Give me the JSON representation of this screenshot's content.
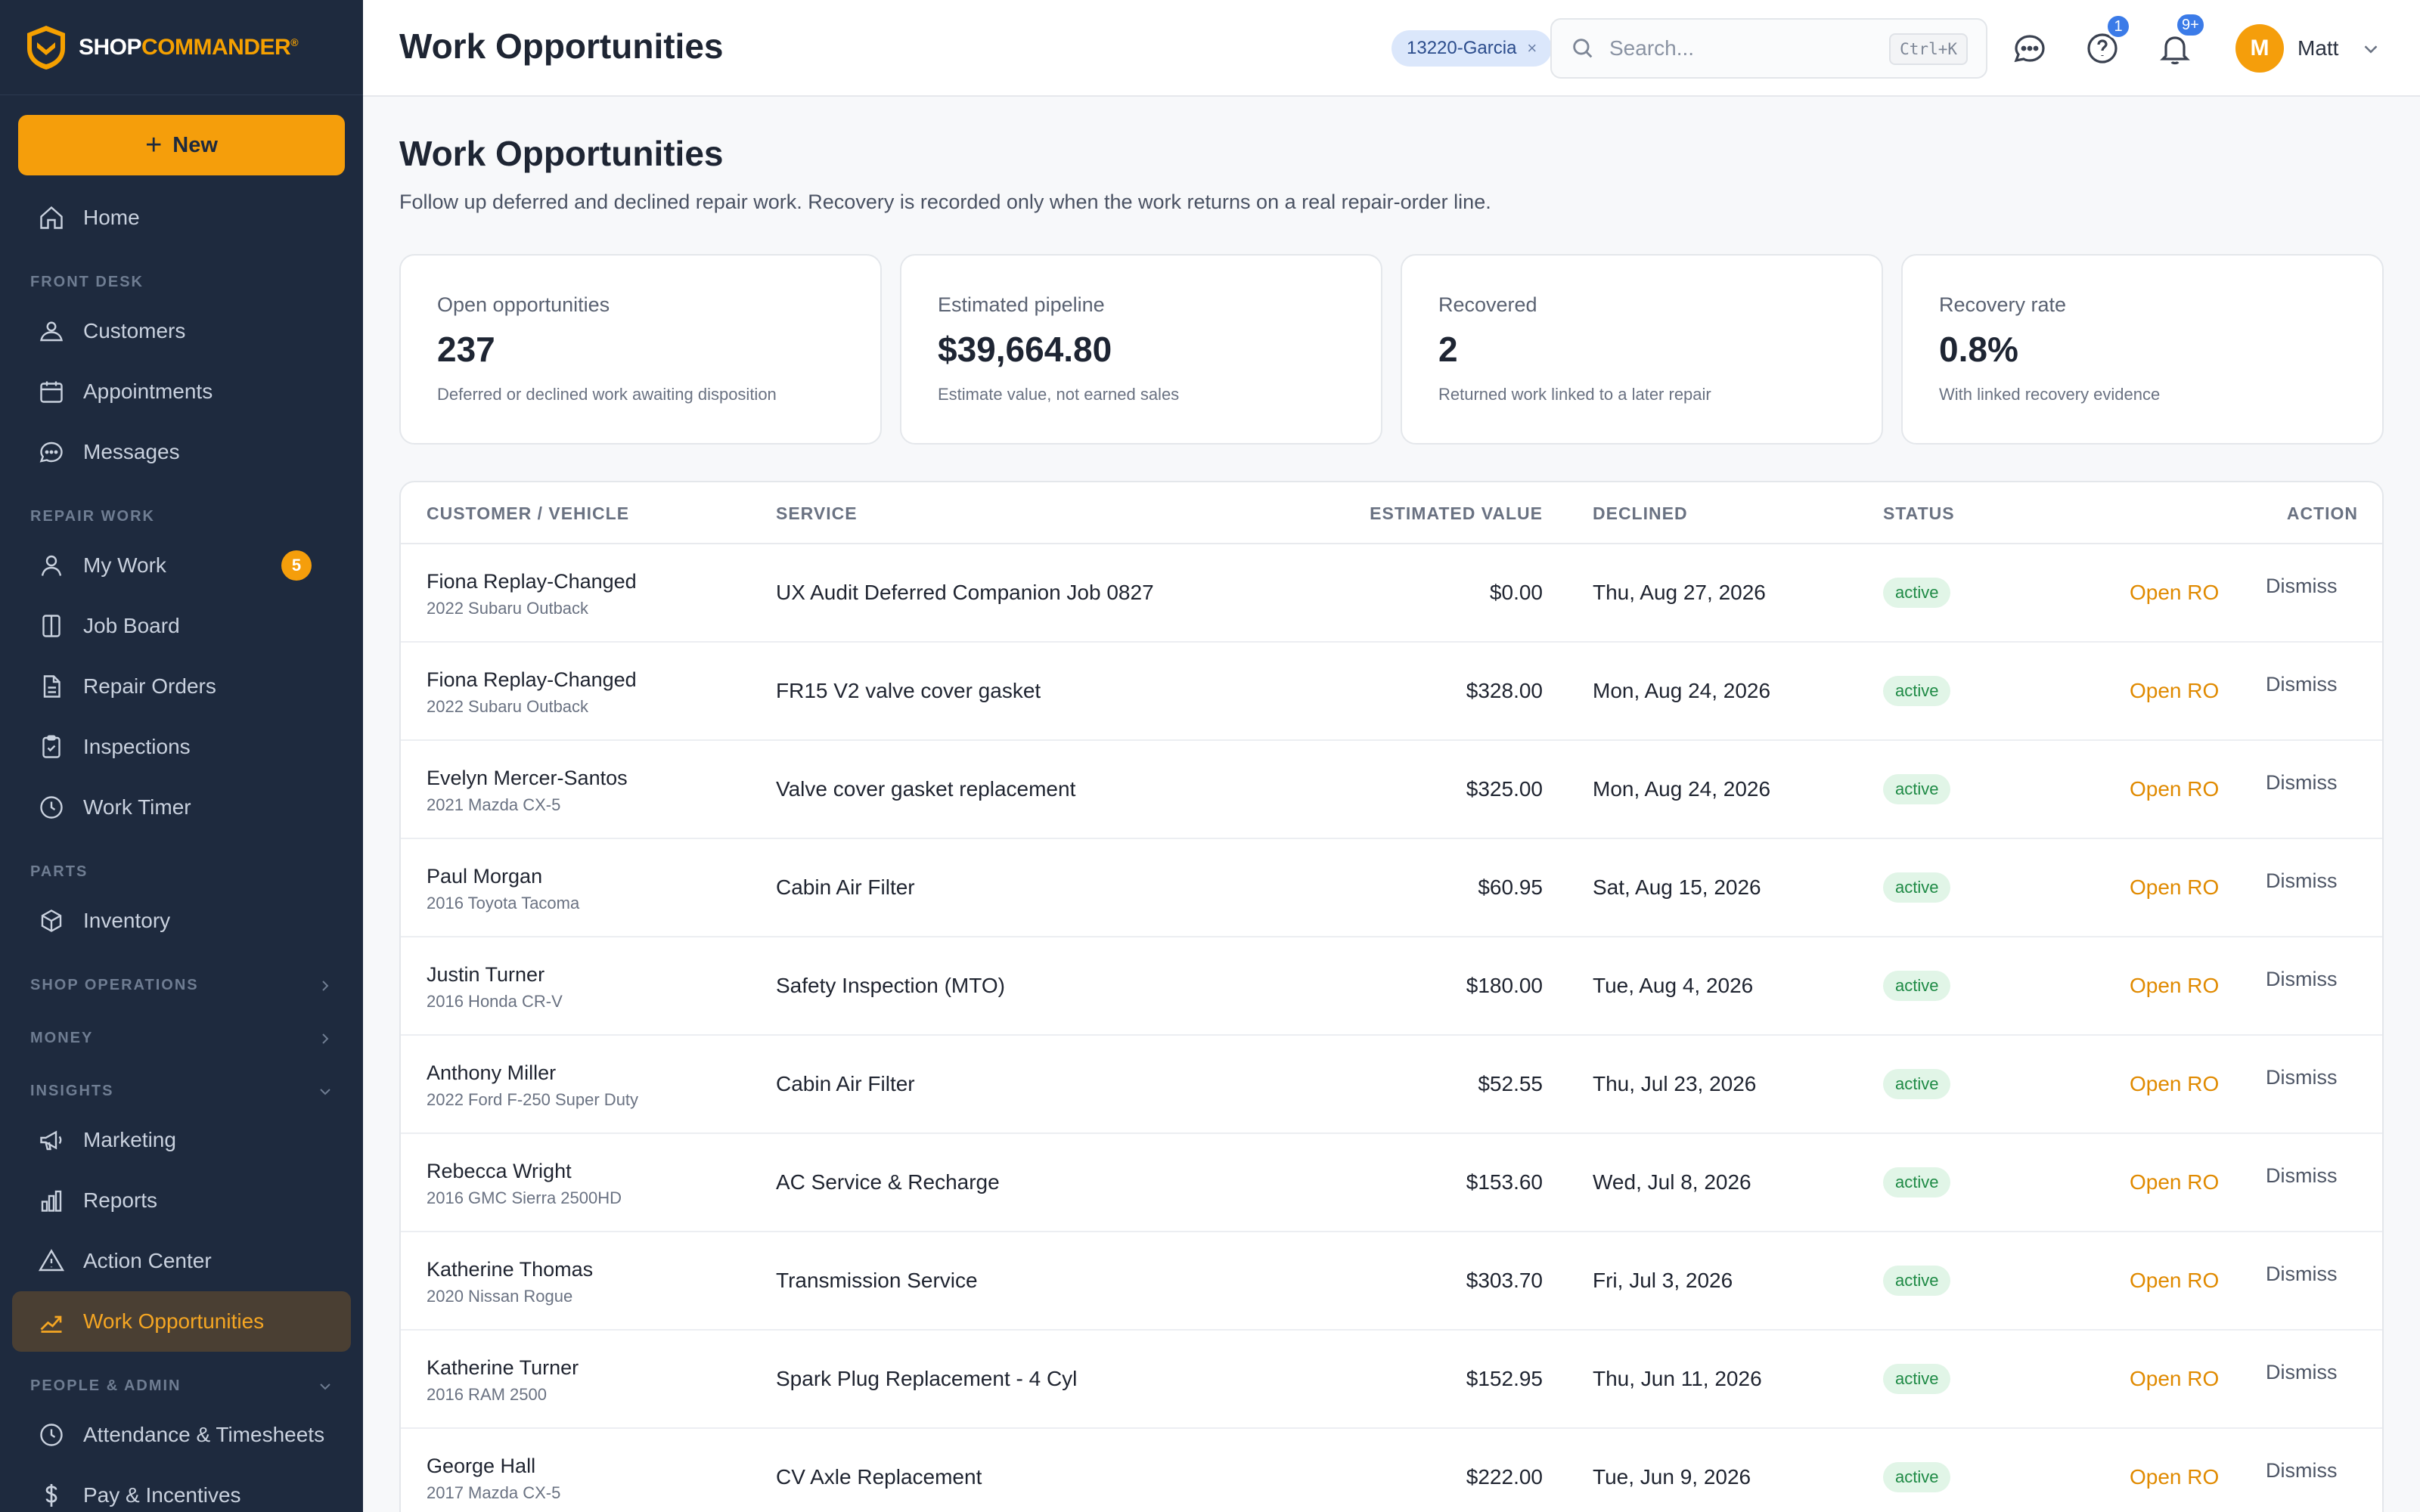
{
  "brand": {
    "name_part1": "SHOP",
    "name_part2": "COMMANDER",
    "reg": "®",
    "accent": "#f59e0b"
  },
  "sidebar": {
    "new_label": "New",
    "items": {
      "home": "Home",
      "customers": "Customers",
      "appointments": "Appointments",
      "messages": "Messages",
      "my_work": "My Work",
      "my_work_badge": "5",
      "job_board": "Job Board",
      "repair_orders": "Repair Orders",
      "inspections": "Inspections",
      "work_timer": "Work Timer",
      "inventory": "Inventory",
      "marketing": "Marketing",
      "reports": "Reports",
      "action_center": "Action Center",
      "work_opportunities": "Work Opportunities",
      "attendance": "Attendance & Timesheets",
      "pay": "Pay & Incentives"
    },
    "sections": {
      "front_desk": "FRONT DESK",
      "repair_work": "REPAIR WORK",
      "parts": "PARTS",
      "shop_operations": "SHOP OPERATIONS",
      "money": "MONEY",
      "insights": "INSIGHTS",
      "people_admin": "PEOPLE & ADMIN"
    }
  },
  "header": {
    "title": "Work Opportunities",
    "filter_chip": "13220-Garcia",
    "chip_close": "×",
    "search_placeholder": "Search...",
    "search_shortcut": "Ctrl+K",
    "help_badge": "1",
    "notif_badge": "9+",
    "user_initial": "M",
    "user_name": "Matt"
  },
  "main": {
    "title": "Work Opportunities",
    "subtitle": "Follow up deferred and declined repair work. Recovery is recorded only when the work returns on a real repair-order line.",
    "stats": [
      {
        "label": "Open opportunities",
        "value": "237",
        "note": "Deferred or declined work awaiting disposition"
      },
      {
        "label": "Estimated pipeline",
        "value": "$39,664.80",
        "note": "Estimate value, not earned sales"
      },
      {
        "label": "Recovered",
        "value": "2",
        "note": "Returned work linked to a later repair"
      },
      {
        "label": "Recovery rate",
        "value": "0.8%",
        "note": "With linked recovery evidence"
      }
    ],
    "columns": {
      "customer": "CUSTOMER / VEHICLE",
      "service": "SERVICE",
      "value": "ESTIMATED VALUE",
      "declined": "DECLINED",
      "status": "STATUS",
      "action": "ACTION"
    },
    "rows": [
      {
        "name": "Fiona Replay-Changed",
        "vehicle": "2022 Subaru Outback",
        "service": "UX Audit Deferred Companion Job 0827",
        "value": "$0.00",
        "declined": "Thu, Aug 27, 2026",
        "status": "active",
        "open": "Open RO",
        "dismiss": "Dismiss"
      },
      {
        "name": "Fiona Replay-Changed",
        "vehicle": "2022 Subaru Outback",
        "service": "FR15 V2 valve cover gasket",
        "value": "$328.00",
        "declined": "Mon, Aug 24, 2026",
        "status": "active",
        "open": "Open RO",
        "dismiss": "Dismiss"
      },
      {
        "name": "Evelyn Mercer-Santos",
        "vehicle": "2021 Mazda CX-5",
        "service": "Valve cover gasket replacement",
        "value": "$325.00",
        "declined": "Mon, Aug 24, 2026",
        "status": "active",
        "open": "Open RO",
        "dismiss": "Dismiss"
      },
      {
        "name": "Paul Morgan",
        "vehicle": "2016 Toyota Tacoma",
        "service": "Cabin Air Filter",
        "value": "$60.95",
        "declined": "Sat, Aug 15, 2026",
        "status": "active",
        "open": "Open RO",
        "dismiss": "Dismiss"
      },
      {
        "name": "Justin Turner",
        "vehicle": "2016 Honda CR-V",
        "service": "Safety Inspection (MTO)",
        "value": "$180.00",
        "declined": "Tue, Aug 4, 2026",
        "status": "active",
        "open": "Open RO",
        "dismiss": "Dismiss"
      },
      {
        "name": "Anthony Miller",
        "vehicle": "2022 Ford F-250 Super Duty",
        "service": "Cabin Air Filter",
        "value": "$52.55",
        "declined": "Thu, Jul 23, 2026",
        "status": "active",
        "open": "Open RO",
        "dismiss": "Dismiss"
      },
      {
        "name": "Rebecca Wright",
        "vehicle": "2016 GMC Sierra 2500HD",
        "service": "AC Service & Recharge",
        "value": "$153.60",
        "declined": "Wed, Jul 8, 2026",
        "status": "active",
        "open": "Open RO",
        "dismiss": "Dismiss"
      },
      {
        "name": "Katherine Thomas",
        "vehicle": "2020 Nissan Rogue",
        "service": "Transmission Service",
        "value": "$303.70",
        "declined": "Fri, Jul 3, 2026",
        "status": "active",
        "open": "Open RO",
        "dismiss": "Dismiss"
      },
      {
        "name": "Katherine Turner",
        "vehicle": "2016 RAM 2500",
        "service": "Spark Plug Replacement - 4 Cyl",
        "value": "$152.95",
        "declined": "Thu, Jun 11, 2026",
        "status": "active",
        "open": "Open RO",
        "dismiss": "Dismiss"
      },
      {
        "name": "George Hall",
        "vehicle": "2017 Mazda CX-5",
        "service": "CV Axle Replacement",
        "value": "$222.00",
        "declined": "Tue, Jun 9, 2026",
        "status": "active",
        "open": "Open RO",
        "dismiss": "Dismiss"
      }
    ]
  }
}
